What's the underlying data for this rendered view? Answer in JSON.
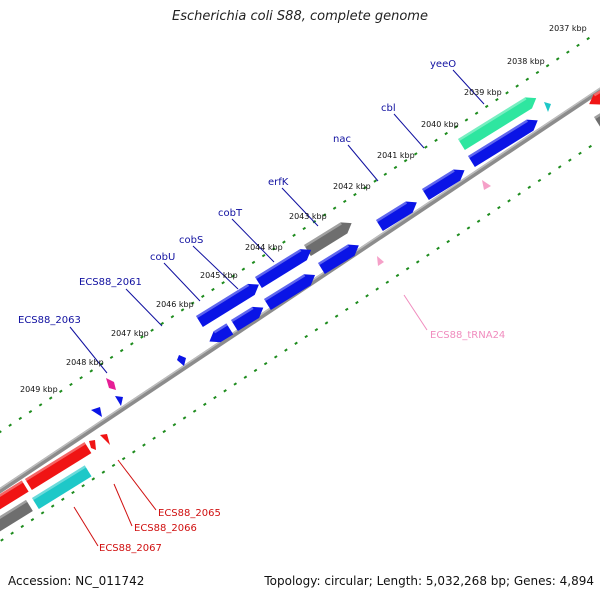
{
  "title": "Escherichia coli S88, complete genome",
  "footer": {
    "accession": "Accession: NC_011742",
    "summary": "Topology: circular; Length: 5,032,268 bp; Genes: 4,894"
  },
  "colors": {
    "cds_blue": "#0a14e6",
    "cds_red": "#f01414",
    "cds_gray": "#6e6e6e",
    "cds_cyan": "#1ec8c8",
    "cds_green": "#2ee6a0",
    "trna_pink": "#f5a0c8",
    "magenta": "#e61e96",
    "tick_green": "#1e8c1e",
    "backbone": "#8c8c8c",
    "label_blue": "#1010a0",
    "label_red": "#d01010",
    "label_pink": "#f08cbe"
  },
  "kbp_ticks": [
    "2037 kbp",
    "2038 kbp",
    "2039 kbp",
    "2040 kbp",
    "2041 kbp",
    "2042 kbp",
    "2043 kbp",
    "2044 kbp",
    "2045 kbp",
    "2046 kbp",
    "2047 kbp",
    "2048 kbp",
    "2049 kbp"
  ],
  "gene_labels": [
    {
      "text": "yeeO",
      "color": "label_blue"
    },
    {
      "text": "cbl",
      "color": "label_blue"
    },
    {
      "text": "nac",
      "color": "label_blue"
    },
    {
      "text": "erfK",
      "color": "label_blue"
    },
    {
      "text": "cobT",
      "color": "label_blue"
    },
    {
      "text": "cobS",
      "color": "label_blue"
    },
    {
      "text": "cobU",
      "color": "label_blue"
    },
    {
      "text": "ECS88_2061",
      "color": "label_blue"
    },
    {
      "text": "ECS88_2063",
      "color": "label_blue"
    },
    {
      "text": "ECS88_tRNA24",
      "color": "label_pink"
    },
    {
      "text": "ECS88_2065",
      "color": "label_red"
    },
    {
      "text": "ECS88_2066",
      "color": "label_red"
    },
    {
      "text": "ECS88_2067",
      "color": "label_red"
    }
  ]
}
